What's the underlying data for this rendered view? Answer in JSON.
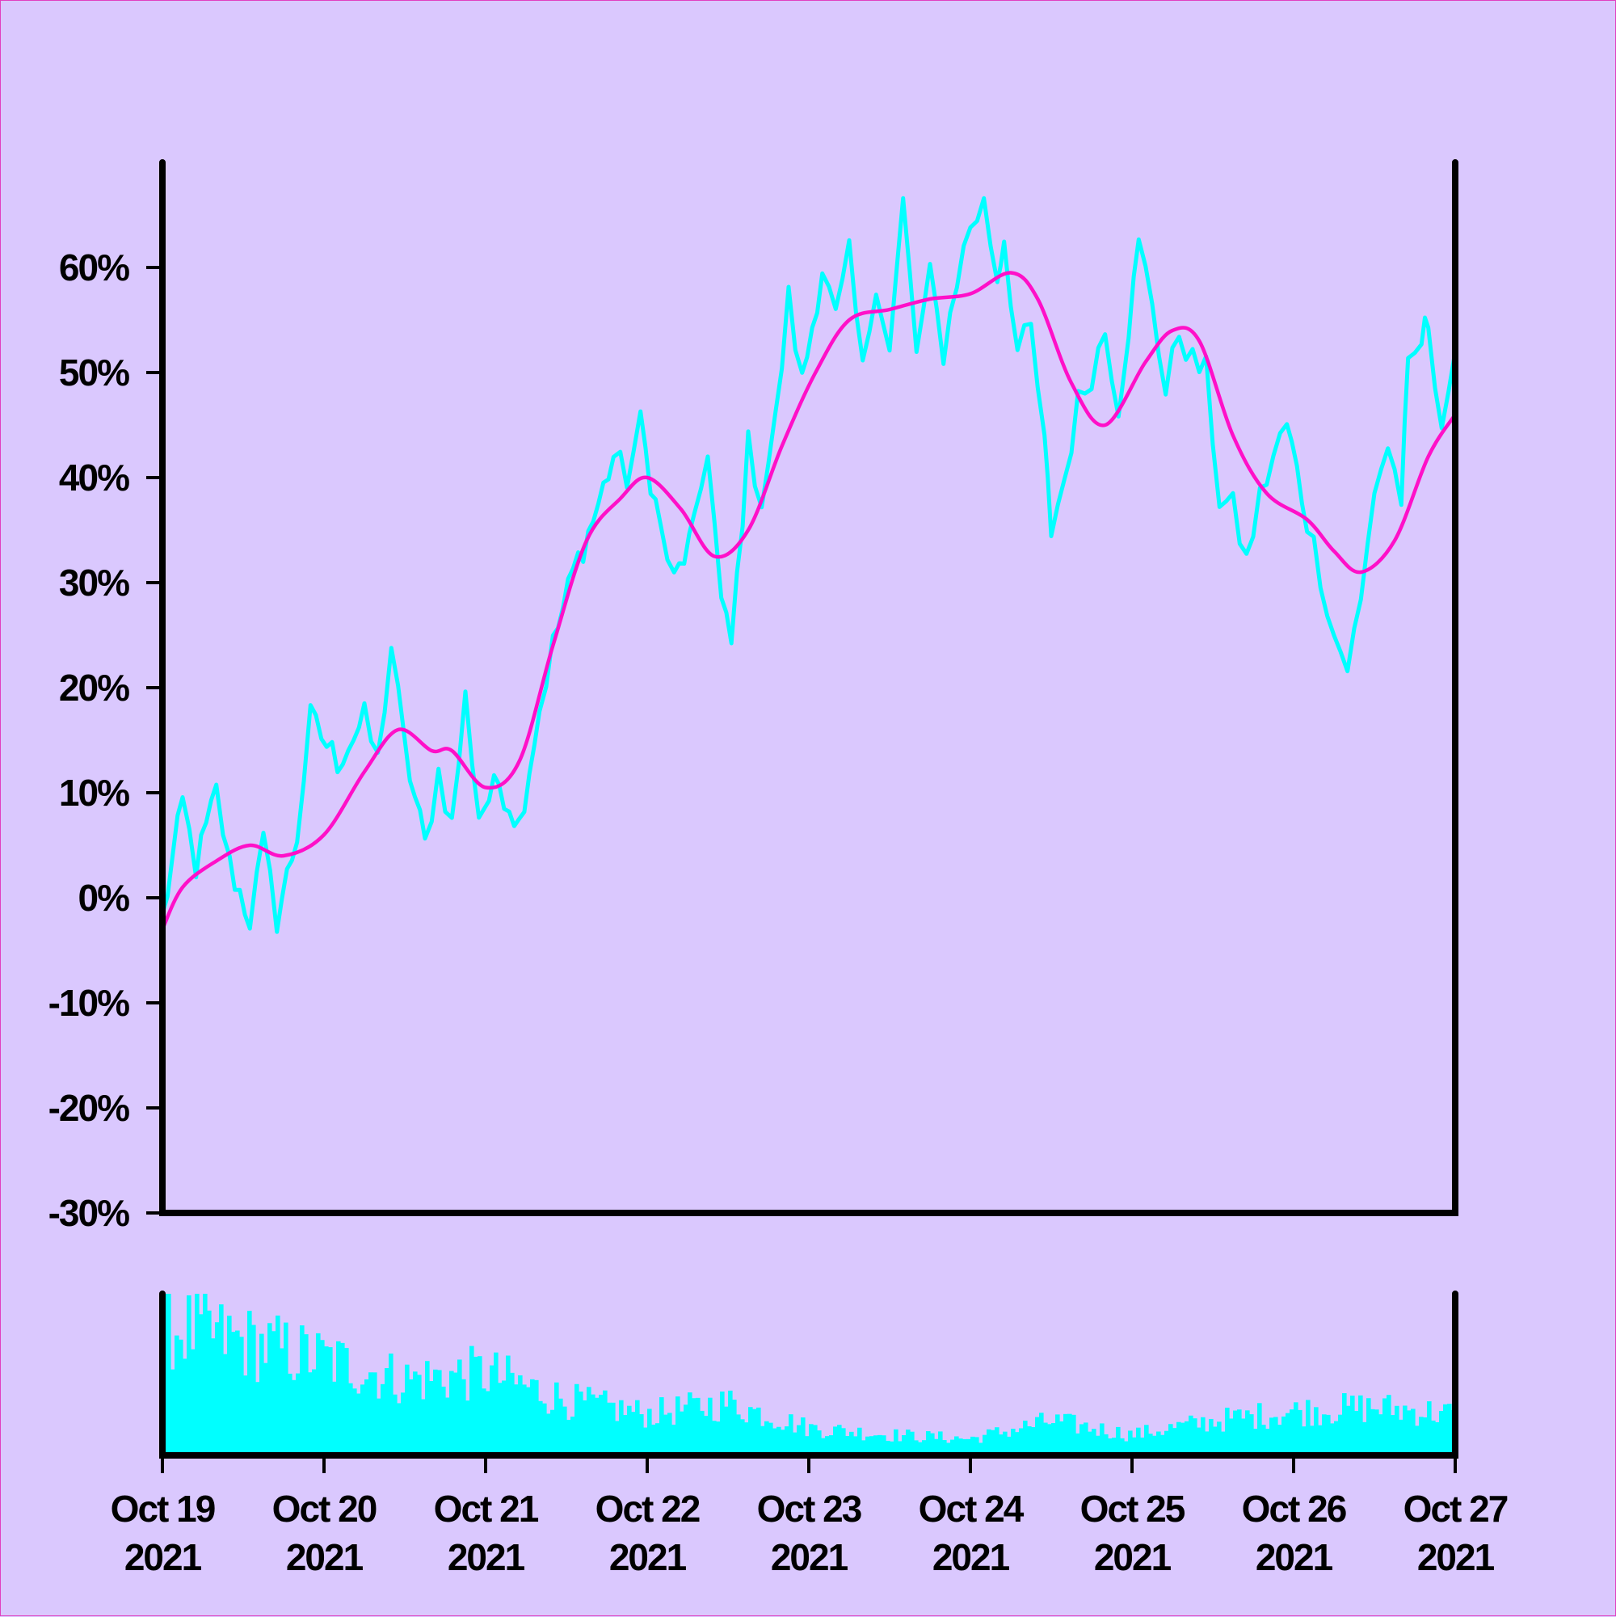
{
  "chart_data": {
    "type": "line",
    "x_dates": [
      "Oct 19",
      "Oct 20",
      "Oct 21",
      "Oct 22",
      "Oct 23",
      "Oct 24",
      "Oct 25",
      "Oct 26",
      "Oct 27"
    ],
    "y_axis": {
      "ticks": [
        60,
        50,
        40,
        30,
        20,
        10,
        0,
        -10,
        -20,
        -30
      ],
      "tick_labels": [
        "60%",
        "50%",
        "40%",
        "30%",
        "20%",
        "10%",
        "0%",
        "-10%",
        "-20%",
        "-30%"
      ],
      "ylim": [
        -30,
        70
      ]
    },
    "x_axis": {
      "tick_labels": [
        {
          "date": "Oct 19",
          "year": "2021"
        },
        {
          "date": "Oct 20",
          "year": "2021"
        },
        {
          "date": "Oct 21",
          "year": "2021"
        },
        {
          "date": "Oct 22",
          "year": "2021"
        },
        {
          "date": "Oct 23",
          "year": "2021"
        },
        {
          "date": "Oct 24",
          "year": "2021"
        },
        {
          "date": "Oct 25",
          "year": "2021"
        },
        {
          "date": "Oct 26",
          "year": "2021"
        },
        {
          "date": "Oct 27",
          "year": "2021"
        }
      ],
      "xlim": [
        "2021-10-19",
        "2021-10-27"
      ]
    },
    "series": [
      {
        "color": "#00ffff",
        "points": [
          [
            "2021-10-19 00:00",
            -2
          ],
          [
            "2021-10-19 03:00",
            9
          ],
          [
            "2021-10-19 05:00",
            3
          ],
          [
            "2021-10-19 08:00",
            10
          ],
          [
            "2021-10-19 10:00",
            3
          ],
          [
            "2021-10-19 13:00",
            -2
          ],
          [
            "2021-10-19 15:00",
            5
          ],
          [
            "2021-10-19 17:00",
            -2
          ],
          [
            "2021-10-19 20:00",
            6
          ],
          [
            "2021-10-19 22:00",
            17
          ],
          [
            "2021-10-20 02:00",
            13
          ],
          [
            "2021-10-20 06:00",
            17
          ],
          [
            "2021-10-20 08:00",
            13
          ],
          [
            "2021-10-20 10:00",
            24
          ],
          [
            "2021-10-20 12:00",
            14
          ],
          [
            "2021-10-20 15:00",
            5
          ],
          [
            "2021-10-20 17:00",
            12
          ],
          [
            "2021-10-20 19:00",
            7
          ],
          [
            "2021-10-20 21:00",
            19
          ],
          [
            "2021-10-20 23:00",
            8
          ],
          [
            "2021-10-21 02:00",
            11
          ],
          [
            "2021-10-21 05:00",
            7
          ],
          [
            "2021-10-21 08:00",
            18
          ],
          [
            "2021-10-21 10:00",
            24
          ],
          [
            "2021-10-21 13:00",
            31
          ],
          [
            "2021-10-21 16:00",
            36
          ],
          [
            "2021-10-21 19:00",
            42
          ],
          [
            "2021-10-21 21:00",
            40
          ],
          [
            "2021-10-21 23:00",
            45
          ],
          [
            "2021-10-22 02:00",
            35
          ],
          [
            "2021-10-22 04:00",
            30
          ],
          [
            "2021-10-22 07:00",
            35
          ],
          [
            "2021-10-22 09:00",
            43
          ],
          [
            "2021-10-22 11:00",
            28
          ],
          [
            "2021-10-22 12:30",
            24
          ],
          [
            "2021-10-22 15:00",
            43
          ],
          [
            "2021-10-22 17:00",
            38
          ],
          [
            "2021-10-22 19:00",
            45
          ],
          [
            "2021-10-22 21:00",
            57
          ],
          [
            "2021-10-22 23:00",
            49
          ],
          [
            "2021-10-23 02:00",
            60
          ],
          [
            "2021-10-23 04:00",
            55
          ],
          [
            "2021-10-23 06:00",
            61
          ],
          [
            "2021-10-23 08:00",
            50
          ],
          [
            "2021-10-23 10:00",
            59
          ],
          [
            "2021-10-23 12:00",
            52
          ],
          [
            "2021-10-23 14:00",
            66
          ],
          [
            "2021-10-23 16:00",
            52
          ],
          [
            "2021-10-23 18:00",
            59
          ],
          [
            "2021-10-23 20:00",
            52
          ],
          [
            "2021-10-23 22:00",
            59
          ],
          [
            "2021-10-24 00:00",
            64
          ],
          [
            "2021-10-24 02:00",
            66
          ],
          [
            "2021-10-24 04:00",
            59
          ],
          [
            "2021-10-24 05:00",
            63
          ],
          [
            "2021-10-24 07:00",
            52
          ],
          [
            "2021-10-24 09:00",
            54
          ],
          [
            "2021-10-24 11:00",
            43
          ],
          [
            "2021-10-24 12:00",
            35
          ],
          [
            "2021-10-24 14:00",
            40
          ],
          [
            "2021-10-24 16:00",
            47
          ],
          [
            "2021-10-24 18:00",
            50
          ],
          [
            "2021-10-24 20:00",
            54
          ],
          [
            "2021-10-24 22:00",
            47
          ],
          [
            "2021-10-25 01:00",
            62
          ],
          [
            "2021-10-25 03:00",
            57
          ],
          [
            "2021-10-25 05:00",
            48
          ],
          [
            "2021-10-25 07:00",
            54
          ],
          [
            "2021-10-25 09:00",
            51
          ],
          [
            "2021-10-25 11:00",
            50
          ],
          [
            "2021-10-25 13:00",
            38
          ],
          [
            "2021-10-25 15:00",
            37
          ],
          [
            "2021-10-25 17:00",
            32
          ],
          [
            "2021-10-25 19:00",
            38
          ],
          [
            "2021-10-25 21:00",
            42
          ],
          [
            "2021-10-25 23:00",
            45
          ],
          [
            "2021-10-26 02:00",
            36
          ],
          [
            "2021-10-26 04:00",
            31
          ],
          [
            "2021-10-26 06:00",
            25
          ],
          [
            "2021-10-26 08:00",
            22
          ],
          [
            "2021-10-26 10:00",
            28
          ],
          [
            "2021-10-26 12:00",
            39
          ],
          [
            "2021-10-26 14:00",
            43
          ],
          [
            "2021-10-26 16:00",
            38
          ],
          [
            "2021-10-26 17:00",
            50
          ],
          [
            "2021-10-26 19:00",
            53
          ],
          [
            "2021-10-26 20:00",
            55
          ],
          [
            "2021-10-26 22:00",
            45
          ],
          [
            "2021-10-27 00:00",
            52
          ]
        ]
      },
      {
        "color": "#ff10c8",
        "points": [
          [
            "2021-10-19 00:00",
            -3
          ],
          [
            "2021-10-19 03:00",
            1
          ],
          [
            "2021-10-19 08:00",
            3.5
          ],
          [
            "2021-10-19 13:00",
            5
          ],
          [
            "2021-10-19 18:00",
            4
          ],
          [
            "2021-10-20 00:00",
            6
          ],
          [
            "2021-10-20 06:00",
            12
          ],
          [
            "2021-10-20 11:00",
            16
          ],
          [
            "2021-10-20 16:00",
            14
          ],
          [
            "2021-10-20 19:00",
            14
          ],
          [
            "2021-10-21 00:00",
            10.5
          ],
          [
            "2021-10-21 05:00",
            13
          ],
          [
            "2021-10-21 10:00",
            24
          ],
          [
            "2021-10-21 15:00",
            34
          ],
          [
            "2021-10-21 20:00",
            38
          ],
          [
            "2021-10-22 00:00",
            40
          ],
          [
            "2021-10-22 05:00",
            37
          ],
          [
            "2021-10-22 10:00",
            32.5
          ],
          [
            "2021-10-22 15:00",
            35
          ],
          [
            "2021-10-22 20:00",
            43
          ],
          [
            "2021-10-23 01:00",
            50
          ],
          [
            "2021-10-23 06:00",
            55
          ],
          [
            "2021-10-23 12:00",
            56
          ],
          [
            "2021-10-23 18:00",
            57
          ],
          [
            "2021-10-24 00:00",
            57.5
          ],
          [
            "2021-10-24 06:00",
            59.5
          ],
          [
            "2021-10-24 10:00",
            57
          ],
          [
            "2021-10-24 15:00",
            49
          ],
          [
            "2021-10-24 20:00",
            45
          ],
          [
            "2021-10-25 02:00",
            51
          ],
          [
            "2021-10-25 06:00",
            54
          ],
          [
            "2021-10-25 10:00",
            53
          ],
          [
            "2021-10-25 15:00",
            44
          ],
          [
            "2021-10-25 20:00",
            38.5
          ],
          [
            "2021-10-26 02:00",
            36
          ],
          [
            "2021-10-26 06:00",
            33
          ],
          [
            "2021-10-26 10:00",
            31
          ],
          [
            "2021-10-26 15:00",
            34
          ],
          [
            "2021-10-26 20:00",
            42
          ],
          [
            "2021-10-27 00:00",
            46
          ]
        ]
      }
    ],
    "volume": {
      "color": "#00ffff",
      "profile": [
        [
          "2021-10-19",
          0.95
        ],
        [
          "2021-10-20",
          0.7
        ],
        [
          "2021-10-20 12:00",
          0.55
        ],
        [
          "2021-10-21",
          0.6
        ],
        [
          "2021-10-21 12:00",
          0.4
        ],
        [
          "2021-10-22",
          0.3
        ],
        [
          "2021-10-22 12:00",
          0.38
        ],
        [
          "2021-10-23",
          0.2
        ],
        [
          "2021-10-23 12:00",
          0.15
        ],
        [
          "2021-10-24",
          0.12
        ],
        [
          "2021-10-24 12:00",
          0.25
        ],
        [
          "2021-10-25",
          0.15
        ],
        [
          "2021-10-25 12:00",
          0.25
        ],
        [
          "2021-10-26",
          0.32
        ],
        [
          "2021-10-26 12:00",
          0.35
        ],
        [
          "2021-10-27",
          0.3
        ]
      ]
    },
    "grid": false,
    "legend": "none"
  }
}
